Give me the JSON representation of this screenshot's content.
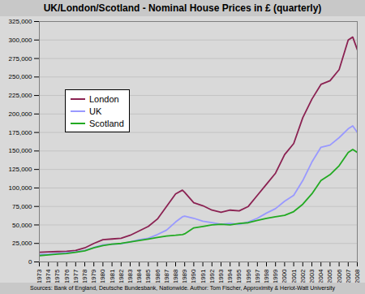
{
  "chart_data": {
    "type": "line",
    "title": "UK/London/Scotland - Nominal House Prices in £ (quarterly)",
    "caption": "Sources: Bank of England, Deutsche Bundesbank, Nationwide.  Author: Tom Fischer, Approximity & Heriot-Watt University",
    "x": [
      1973,
      1974,
      1975,
      1976,
      1977,
      1978,
      1979,
      1980,
      1981,
      1982,
      1983,
      1984,
      1985,
      1986,
      1987,
      1988,
      1988.75,
      1989,
      1990,
      1991,
      1992,
      1993,
      1994,
      1995,
      1996,
      1997,
      1998,
      1999,
      2000,
      2001,
      2002,
      2003,
      2004,
      2005,
      2006,
      2007,
      2007.5,
      2008
    ],
    "series": [
      {
        "name": "London",
        "color": "#8b2252",
        "values": [
          13000,
          13500,
          14000,
          14500,
          15500,
          19000,
          25000,
          30000,
          31000,
          32000,
          36000,
          42000,
          48000,
          58000,
          75000,
          92000,
          97000,
          94000,
          80000,
          76000,
          70000,
          67000,
          70000,
          69000,
          75000,
          90000,
          105000,
          120000,
          145000,
          160000,
          195000,
          220000,
          240000,
          245000,
          260000,
          300000,
          304000,
          287000
        ]
      },
      {
        "name": "UK",
        "color": "#9999ff",
        "values": [
          10000,
          10500,
          11500,
          12500,
          13500,
          15500,
          19500,
          23000,
          24000,
          24500,
          27000,
          30000,
          32000,
          37000,
          43000,
          54000,
          61000,
          62000,
          59000,
          55000,
          53000,
          51000,
          52000,
          51000,
          54000,
          59000,
          66000,
          72000,
          82000,
          90000,
          110000,
          135000,
          155000,
          158000,
          168000,
          180000,
          184000,
          175000
        ]
      },
      {
        "name": "Scotland",
        "color": "#22aa22",
        "values": [
          8500,
          9500,
          10500,
          11500,
          13000,
          15000,
          19000,
          22000,
          24000,
          25000,
          27000,
          29000,
          31000,
          33000,
          35000,
          36000,
          37000,
          38000,
          46000,
          48000,
          50000,
          51000,
          50000,
          52000,
          53000,
          56000,
          59000,
          61000,
          63000,
          68000,
          78000,
          92000,
          110000,
          118000,
          130000,
          148000,
          152000,
          148000
        ]
      }
    ],
    "xlim": [
      1973,
      2008
    ],
    "xticks": [
      1973,
      1974,
      1975,
      1976,
      1977,
      1978,
      1979,
      1980,
      1981,
      1982,
      1983,
      1984,
      1985,
      1986,
      1987,
      1988,
      1989,
      1990,
      1991,
      1992,
      1993,
      1994,
      1995,
      1996,
      1997,
      1998,
      1999,
      2000,
      2001,
      2002,
      2003,
      2004,
      2005,
      2006,
      2007,
      2008
    ],
    "ylim": [
      0,
      325000
    ],
    "yticks": [
      0,
      {
        "value": 25000,
        "label": "25,000"
      },
      {
        "value": 50000,
        "label": "50,000"
      },
      {
        "value": 75000,
        "label": "75,000"
      },
      {
        "value": 100000,
        "label": "100,000"
      },
      {
        "value": 125000,
        "label": "125,000"
      },
      {
        "value": 150000,
        "label": "150,000"
      },
      {
        "value": 175000,
        "label": "175,000"
      },
      {
        "value": 200000,
        "label": "200,000"
      },
      {
        "value": 225000,
        "label": "225,000"
      },
      {
        "value": 250000,
        "label": "250,000"
      },
      {
        "value": 275000,
        "label": "275,000"
      },
      {
        "value": 300000,
        "label": "300,000"
      },
      {
        "value": 325000,
        "label": "325,000"
      }
    ],
    "grid": true,
    "legend": "top-left"
  }
}
